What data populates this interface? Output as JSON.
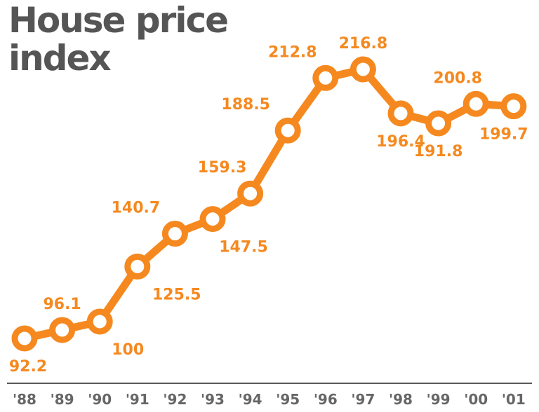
{
  "chart_data": {
    "type": "line",
    "title": "House price\nindex",
    "xlabel": "",
    "ylabel": "",
    "categories": [
      "'88",
      "'89",
      "'90",
      "'91",
      "'92",
      "'93",
      "'94",
      "'95",
      "'96",
      "'97",
      "'98",
      "'99",
      "'00",
      "'01"
    ],
    "values": [
      92.2,
      96.1,
      100,
      125.5,
      140.7,
      147.5,
      159.3,
      188.5,
      212.8,
      216.8,
      196.4,
      191.8,
      200.8,
      199.7
    ],
    "labels": [
      "92.2",
      "96.1",
      "100",
      "125.5",
      "140.7",
      "147.5",
      "159.3",
      "188.5",
      "212.8",
      "216.8",
      "196.4",
      "191.8",
      "200.8",
      "199.7"
    ],
    "label_positions": [
      "below",
      "above",
      "below",
      "below",
      "above",
      "below",
      "above",
      "above",
      "above",
      "above",
      "below",
      "below",
      "above",
      "below"
    ],
    "ylim": [
      90,
      218
    ],
    "grid": false,
    "colors": {
      "line": "#f5891f",
      "marker_fill": "#ffffff",
      "label": "#f5891f",
      "title": "#555555",
      "tick": "#666666",
      "axis": "#222222"
    }
  }
}
